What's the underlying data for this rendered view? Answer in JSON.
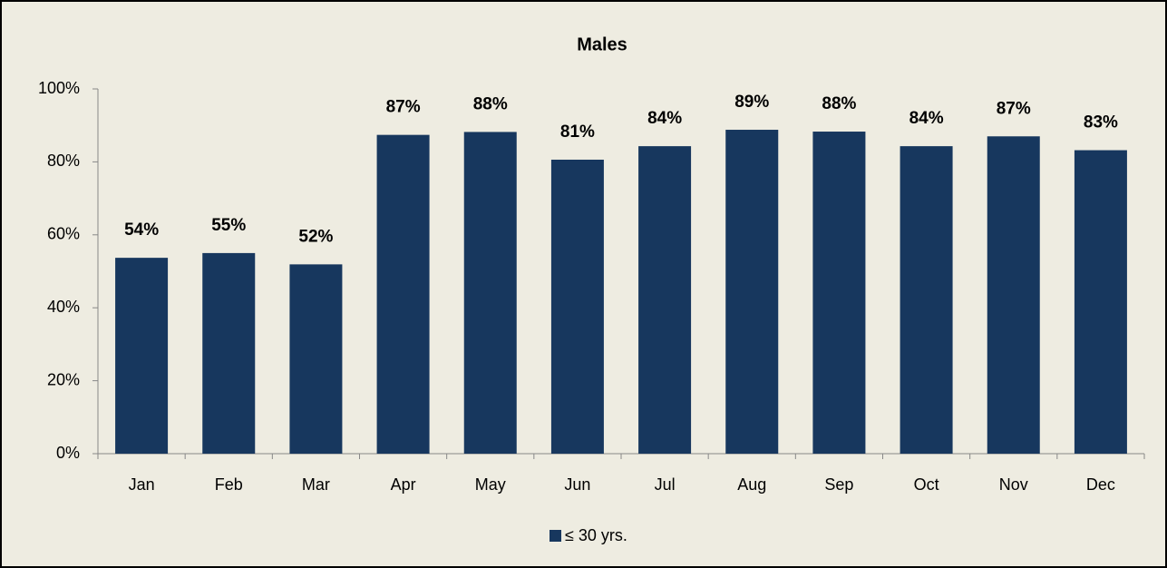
{
  "chart_data": {
    "type": "bar",
    "title": "Males",
    "categories": [
      "Jan",
      "Feb",
      "Mar",
      "Apr",
      "May",
      "Jun",
      "Jul",
      "Aug",
      "Sep",
      "Oct",
      "Nov",
      "Dec"
    ],
    "series": [
      {
        "name": "≤ 30 yrs.",
        "color": "#17375e",
        "values": [
          53.7,
          55,
          51.9,
          87.4,
          88.2,
          80.6,
          84.3,
          88.8,
          88.3,
          84.3,
          87,
          83.2
        ],
        "value_labels": [
          "54%",
          "55%",
          "52%",
          "87%",
          "88%",
          "81%",
          "84%",
          "89%",
          "88%",
          "84%",
          "87%",
          "83%"
        ]
      }
    ],
    "ylim": [
      0,
      100
    ],
    "yticks": [
      {
        "value": 0,
        "label": "0%"
      },
      {
        "value": 20,
        "label": "20%"
      },
      {
        "value": 40,
        "label": "40%"
      },
      {
        "value": 60,
        "label": "60%"
      },
      {
        "value": 80,
        "label": "80%"
      },
      {
        "value": 100,
        "label": "100%"
      }
    ],
    "legend": "bottom"
  }
}
